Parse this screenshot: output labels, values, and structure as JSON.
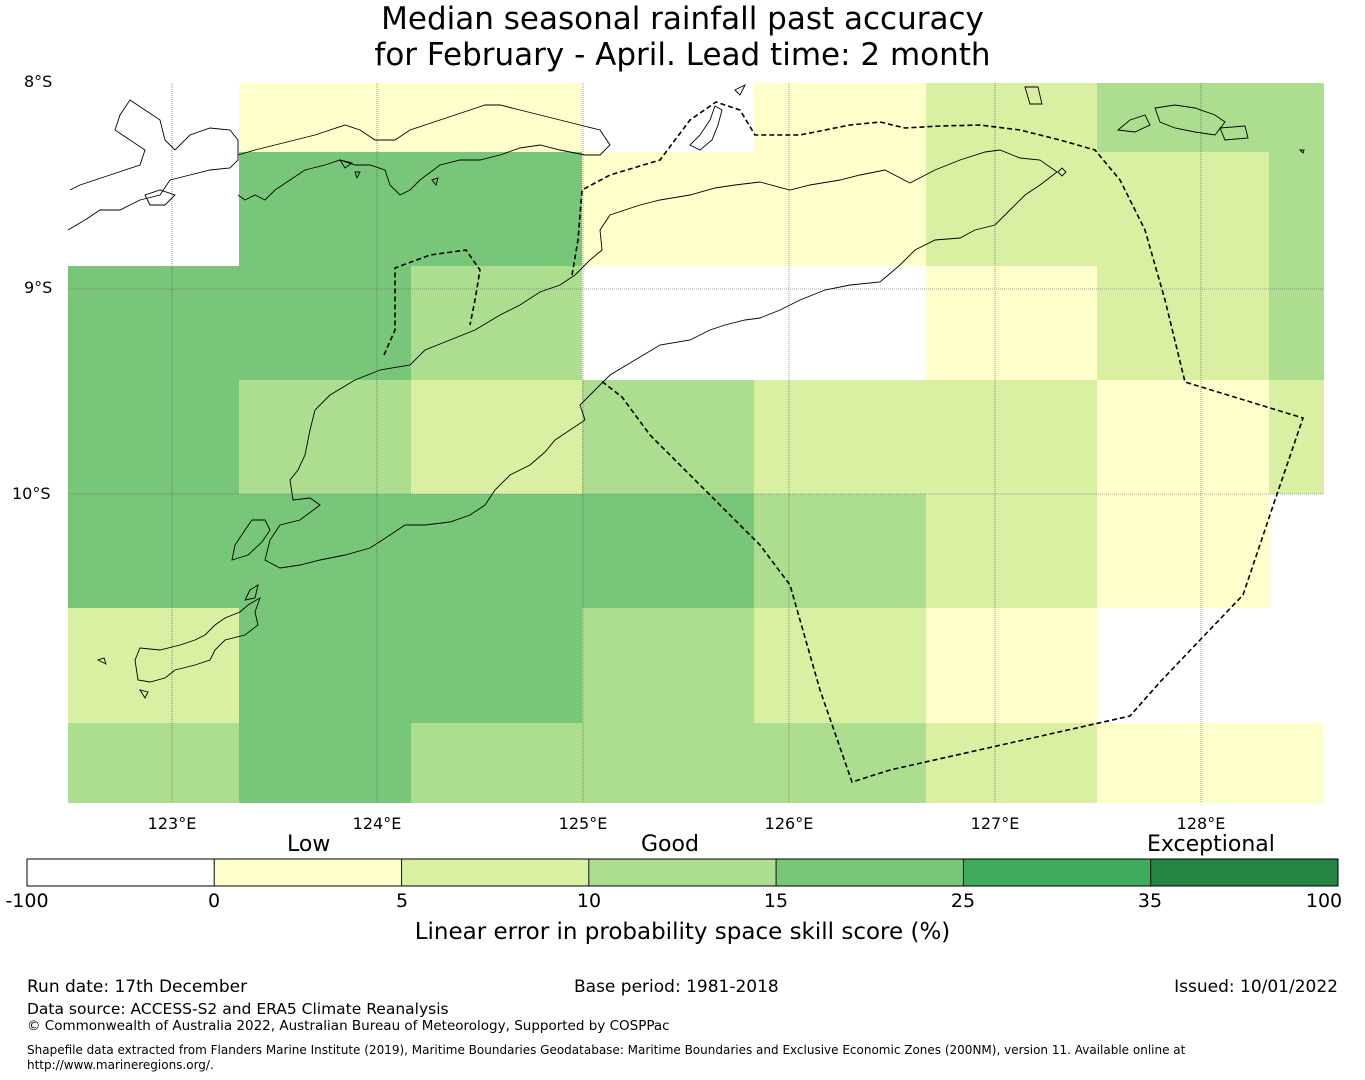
{
  "title": {
    "line1": "Median seasonal rainfall past accuracy",
    "line2": "for February - April. Lead time: 2 month"
  },
  "map": {
    "lat_labels": [
      "8°S",
      "9°S",
      "10°S"
    ],
    "lon_labels": [
      "123°E",
      "124°E",
      "125°E",
      "126°E",
      "127°E",
      "128°E"
    ],
    "grid_colors": {
      "neg": "#ffffff",
      "c0_5": "#ffffcc",
      "c5_10": "#d9f0a3",
      "c10_15": "#addd8e",
      "c15_25": "#78c679",
      "c25_35": "#41ab5d",
      "c35_100": "#238443"
    }
  },
  "colorbar": {
    "category_labels": [
      "Low",
      "Good",
      "Exceptional"
    ],
    "ticks": [
      "-100",
      "0",
      "5",
      "10",
      "15",
      "25",
      "35",
      "100"
    ],
    "title": "Linear error in probability space skill score (%)"
  },
  "footer": {
    "run_date": "Run date: 17th December",
    "base_period": "Base period: 1981-2018",
    "issued": "Issued: 10/01/2022",
    "data_source": "Data source: ACCESS-S2 and ERA5 Climate Reanalysis",
    "copyright": "© Commonwealth of Australia 2022, Australian Bureau of Meteorology, Supported by COSPPac",
    "shapefile_line1": "Shapefile data extracted from Flanders Marine Institute (2019), Maritime Boundaries Geodatabase: Maritime Boundaries and Exclusive Economic Zones (200NM), version 11. Available online at",
    "shapefile_line2": "http://www.marineregions.org/."
  }
}
